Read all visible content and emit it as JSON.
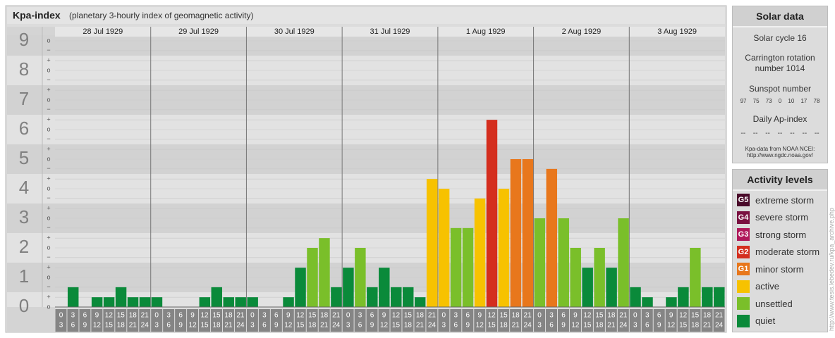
{
  "chart_data": {
    "type": "bar",
    "title": "Kpa-index",
    "subtitle": "(planetary 3-hourly index of geomagnetic activity)",
    "days": [
      "28 Jul 1929",
      "29 Jul 1929",
      "30 Jul 1929",
      "31 Jul 1929",
      "1 Aug 1929",
      "2 Aug 1929",
      "3 Aug 1929"
    ],
    "hour_ranges": [
      [
        0,
        3
      ],
      [
        3,
        6
      ],
      [
        6,
        9
      ],
      [
        9,
        12
      ],
      [
        12,
        15
      ],
      [
        15,
        18
      ],
      [
        18,
        21
      ],
      [
        21,
        24
      ]
    ],
    "values": [
      0,
      0.67,
      0,
      0.33,
      0.33,
      0.67,
      0.33,
      0.33,
      0.33,
      0,
      0,
      0,
      0.33,
      0.67,
      0.33,
      0.33,
      0.33,
      0,
      0,
      0.33,
      1.33,
      2,
      2.33,
      0.67,
      1.33,
      2,
      0.67,
      1.33,
      0.67,
      0.67,
      0.33,
      4.33,
      4,
      2.67,
      2.67,
      3.67,
      6.33,
      4,
      5,
      5,
      3,
      4.67,
      3,
      2,
      1.33,
      2,
      1.33,
      3,
      0.67,
      0.33,
      0,
      0.33,
      0.67,
      2,
      0.67,
      0.67
    ],
    "colors": [
      "#0a8a3a",
      "#0a8a3a",
      "#0a8a3a",
      "#0a8a3a",
      "#0a8a3a",
      "#0a8a3a",
      "#0a8a3a",
      "#0a8a3a",
      "#0a8a3a",
      "#0a8a3a",
      "#0a8a3a",
      "#0a8a3a",
      "#0a8a3a",
      "#0a8a3a",
      "#0a8a3a",
      "#0a8a3a",
      "#0a8a3a",
      "#0a8a3a",
      "#0a8a3a",
      "#0a8a3a",
      "#0a8a3a",
      "#7abf2a",
      "#7abf2a",
      "#0a8a3a",
      "#0a8a3a",
      "#7abf2a",
      "#0a8a3a",
      "#0a8a3a",
      "#0a8a3a",
      "#0a8a3a",
      "#0a8a3a",
      "#f7c200",
      "#f7c200",
      "#7abf2a",
      "#7abf2a",
      "#f7c200",
      "#d42e1e",
      "#f7c200",
      "#e8771c",
      "#e8771c",
      "#7abf2a",
      "#e8771c",
      "#7abf2a",
      "#7abf2a",
      "#0a8a3a",
      "#7abf2a",
      "#0a8a3a",
      "#7abf2a",
      "#0a8a3a",
      "#0a8a3a",
      "#0a8a3a",
      "#0a8a3a",
      "#0a8a3a",
      "#7abf2a",
      "#0a8a3a",
      "#0a8a3a"
    ],
    "ylim": [
      0,
      9.2
    ],
    "yticks": [
      0,
      1,
      2,
      3,
      4,
      5,
      6,
      7,
      8,
      9
    ],
    "minor_ticks": [
      {
        "value": 0,
        "label": "o"
      },
      {
        "value": 0.33,
        "label": "+"
      },
      {
        "value": 0.67,
        "label": "−"
      },
      {
        "value": 1,
        "label": "o"
      },
      {
        "value": 1.33,
        "label": "+"
      },
      {
        "value": 1.67,
        "label": "−"
      },
      {
        "value": 2,
        "label": "o"
      },
      {
        "value": 2.33,
        "label": "+"
      },
      {
        "value": 2.67,
        "label": "−"
      },
      {
        "value": 3,
        "label": "o"
      },
      {
        "value": 3.33,
        "label": "+"
      },
      {
        "value": 3.67,
        "label": "−"
      },
      {
        "value": 4,
        "label": "o"
      },
      {
        "value": 4.33,
        "label": "+"
      },
      {
        "value": 4.67,
        "label": "−"
      },
      {
        "value": 5,
        "label": "o"
      },
      {
        "value": 5.33,
        "label": "+"
      },
      {
        "value": 5.67,
        "label": "−"
      },
      {
        "value": 6,
        "label": "o"
      },
      {
        "value": 6.33,
        "label": "+"
      },
      {
        "value": 6.67,
        "label": "−"
      },
      {
        "value": 7,
        "label": "o"
      },
      {
        "value": 7.33,
        "label": "+"
      },
      {
        "value": 7.67,
        "label": "−"
      },
      {
        "value": 8,
        "label": "o"
      },
      {
        "value": 8.33,
        "label": "+"
      },
      {
        "value": 8.67,
        "label": "−"
      },
      {
        "value": 9,
        "label": "o"
      }
    ],
    "grid": true
  },
  "solar_data": {
    "title": "Solar data",
    "solar_cycle": "Solar cycle 16",
    "carrington": "Carrington rotation number 1014",
    "sunspot_title": "Sunspot number",
    "sunspot_numbers": [
      97,
      75,
      73,
      0,
      10,
      17,
      78
    ],
    "ap_title": "Daily Ap-index",
    "ap_values": [
      "--",
      "--",
      "--",
      "--",
      "--",
      "--",
      "--"
    ],
    "source": "Kpa-data from NOAA NCEI:",
    "source_url": "http://www.ngdc.noaa.gov/"
  },
  "activity_levels": {
    "title": "Activity levels",
    "items": [
      {
        "badge": "G5",
        "label": "extreme storm",
        "color": "#4a0a2a"
      },
      {
        "badge": "G4",
        "label": "severe storm",
        "color": "#7a1040"
      },
      {
        "badge": "G3",
        "label": "strong storm",
        "color": "#b0185a"
      },
      {
        "badge": "G2",
        "label": "moderate storm",
        "color": "#d42e1e"
      },
      {
        "badge": "G1",
        "label": "minor storm",
        "color": "#e8771c"
      },
      {
        "badge": "",
        "label": "active",
        "color": "#f7c200"
      },
      {
        "badge": "",
        "label": "unsettled",
        "color": "#7abf2a"
      },
      {
        "badge": "",
        "label": "quiet",
        "color": "#0a8a3a"
      }
    ]
  },
  "side_url": "http://www.tesis.lebedev.ru/kpa_archive.php"
}
